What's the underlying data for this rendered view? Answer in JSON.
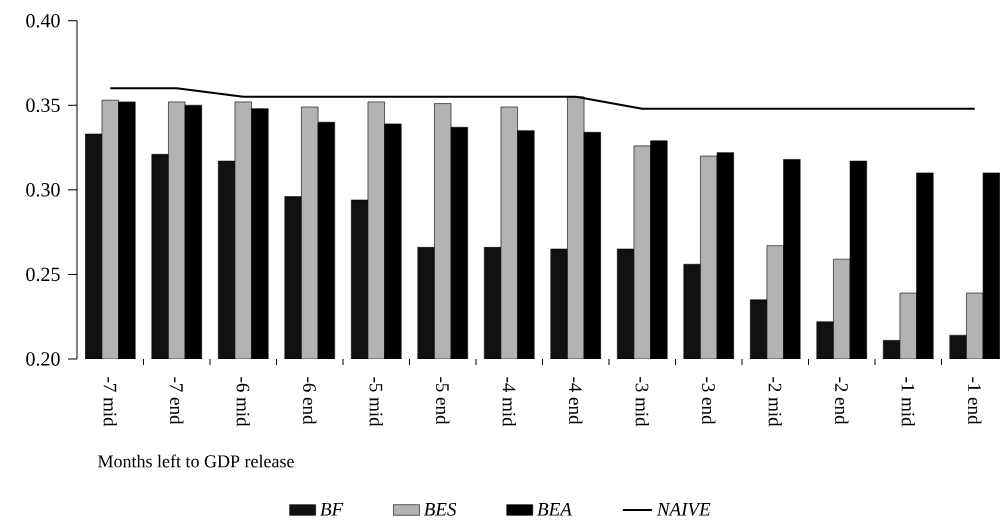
{
  "chart_data": {
    "type": "bar",
    "xlabel": "Months left to GDP release",
    "categories": [
      "-7 mid",
      "-7 end",
      "-6 mid",
      "-6 end",
      "-5 mid",
      "-5 end",
      "-4 mid",
      "-4 end",
      "-3 mid",
      "-3 end",
      "-2 mid",
      "-2 end",
      "-1 mid",
      "-1 end"
    ],
    "series": [
      {
        "name": "BF",
        "color": "#111111",
        "values": [
          0.333,
          0.321,
          0.317,
          0.296,
          0.294,
          0.266,
          0.266,
          0.265,
          0.265,
          0.256,
          0.235,
          0.222,
          0.211,
          0.214
        ]
      },
      {
        "name": "BES",
        "color": "#b3b3b3",
        "values": [
          0.353,
          0.352,
          0.352,
          0.349,
          0.352,
          0.351,
          0.349,
          0.355,
          0.326,
          0.32,
          0.267,
          0.259,
          0.239,
          0.239
        ]
      },
      {
        "name": "BEA",
        "color": "#000000",
        "values": [
          0.352,
          0.35,
          0.348,
          0.34,
          0.339,
          0.337,
          0.335,
          0.334,
          0.329,
          0.322,
          0.318,
          0.317,
          0.31,
          0.31
        ]
      },
      {
        "name": "NAIVE",
        "type": "line",
        "color": "#000000",
        "values": [
          0.36,
          0.36,
          0.355,
          0.355,
          0.355,
          0.355,
          0.355,
          0.355,
          0.348,
          0.348,
          0.348,
          0.348,
          0.348,
          0.348
        ]
      }
    ],
    "ylim": [
      0.2,
      0.4
    ],
    "yticks": [
      {
        "value": 0.2,
        "label": "0.20"
      },
      {
        "value": 0.25,
        "label": "0.25"
      },
      {
        "value": 0.3,
        "label": "0.30"
      },
      {
        "value": 0.35,
        "label": "0.35"
      },
      {
        "value": 0.4,
        "label": "0.40"
      }
    ],
    "legend": "bottom"
  }
}
